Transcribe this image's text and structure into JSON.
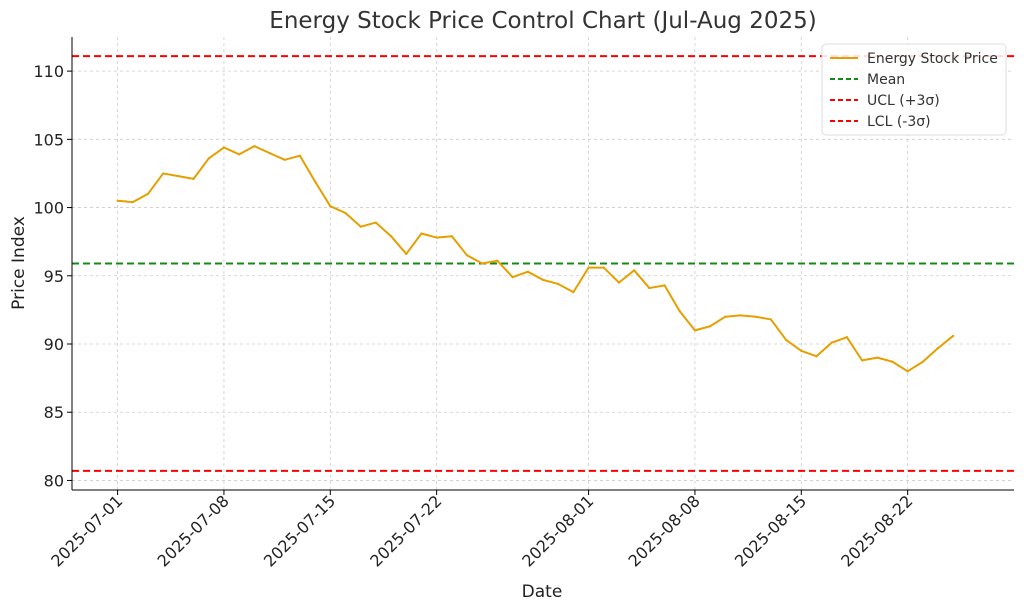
{
  "chart_data": {
    "type": "line",
    "title": "Energy Stock Price Control Chart (Jul-Aug 2025)",
    "xlabel": "Date",
    "ylabel": "Price Index",
    "ylim": [
      79.3,
      112.5
    ],
    "xlim": [
      "2025-06-28",
      "2025-08-29"
    ],
    "yticks": [
      80,
      85,
      90,
      95,
      100,
      105,
      110
    ],
    "xticks": [
      "2025-07-01",
      "2025-07-08",
      "2025-07-15",
      "2025-07-22",
      "2025-08-01",
      "2025-08-08",
      "2025-08-15",
      "2025-08-22"
    ],
    "grid": true,
    "legend_position": "top-right",
    "series": [
      {
        "name": "Energy Stock Price",
        "color": "#e69f00",
        "style": "solid",
        "x": [
          "2025-07-01",
          "2025-07-02",
          "2025-07-03",
          "2025-07-04",
          "2025-07-05",
          "2025-07-06",
          "2025-07-07",
          "2025-07-08",
          "2025-07-09",
          "2025-07-10",
          "2025-07-11",
          "2025-07-12",
          "2025-07-13",
          "2025-07-14",
          "2025-07-15",
          "2025-07-16",
          "2025-07-17",
          "2025-07-18",
          "2025-07-19",
          "2025-07-20",
          "2025-07-21",
          "2025-07-22",
          "2025-07-23",
          "2025-07-24",
          "2025-07-25",
          "2025-07-26",
          "2025-07-27",
          "2025-07-28",
          "2025-07-29",
          "2025-07-30",
          "2025-07-31",
          "2025-08-01",
          "2025-08-02",
          "2025-08-03",
          "2025-08-04",
          "2025-08-05",
          "2025-08-06",
          "2025-08-07",
          "2025-08-08",
          "2025-08-09",
          "2025-08-10",
          "2025-08-11",
          "2025-08-12",
          "2025-08-13",
          "2025-08-14",
          "2025-08-15",
          "2025-08-16",
          "2025-08-17",
          "2025-08-18",
          "2025-08-19",
          "2025-08-20",
          "2025-08-21",
          "2025-08-22",
          "2025-08-23",
          "2025-08-24",
          "2025-08-25"
        ],
        "values": [
          100.5,
          100.4,
          101.0,
          102.5,
          102.3,
          102.1,
          103.6,
          104.4,
          103.9,
          104.5,
          104.0,
          103.5,
          103.8,
          101.9,
          100.1,
          99.6,
          98.6,
          98.9,
          97.9,
          96.6,
          98.1,
          97.8,
          97.9,
          96.5,
          95.9,
          96.1,
          94.9,
          95.3,
          94.7,
          94.4,
          93.8,
          95.6,
          95.6,
          94.5,
          95.4,
          94.1,
          94.3,
          92.4,
          91.0,
          91.3,
          92.0,
          92.1,
          92.0,
          91.8,
          90.3,
          89.5,
          89.1,
          90.1,
          90.5,
          88.8,
          89.0,
          88.7,
          88.0,
          88.7,
          89.7,
          90.6
        ]
      },
      {
        "name": "Mean",
        "color": "#138a13",
        "style": "dashed",
        "value": 95.9
      },
      {
        "name": "UCL (+3σ)",
        "color": "#ff0000",
        "style": "dashed",
        "value": 111.1
      },
      {
        "name": "LCL (-3σ)",
        "color": "#ff0000",
        "style": "dashed",
        "value": 80.7
      }
    ]
  }
}
